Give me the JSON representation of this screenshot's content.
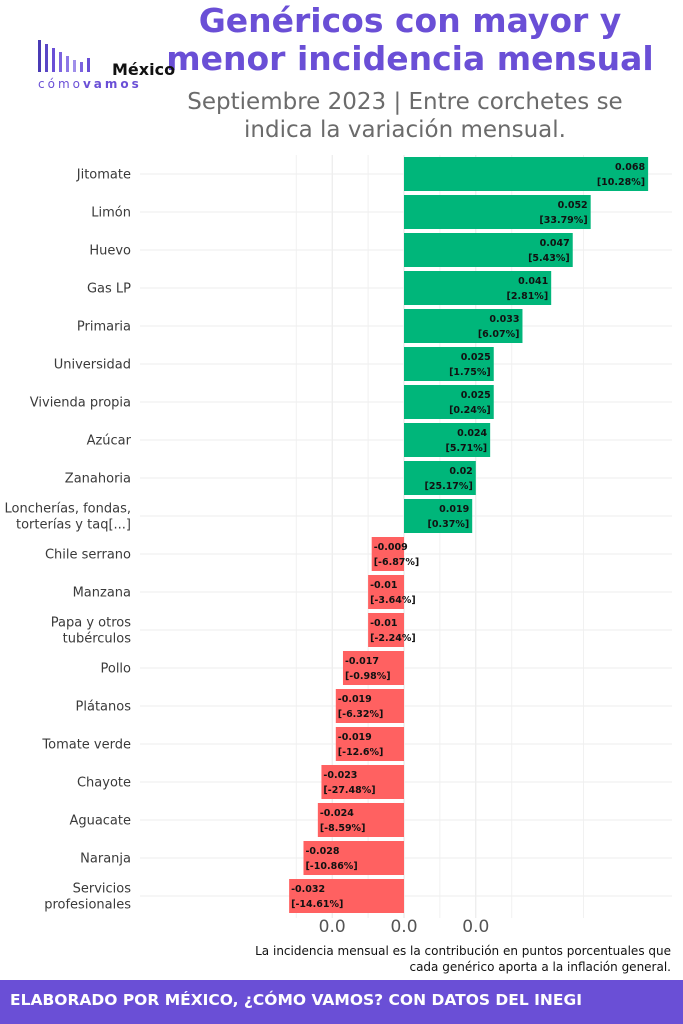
{
  "header": {
    "title_line1": "Genéricos con mayor y",
    "title_line2": "menor incidencia mensual",
    "subtitle_line1": "Septiembre 2023 | Entre corchetes se",
    "subtitle_line2": "indica la variación mensual."
  },
  "logo": {
    "word": "México",
    "sub_light": "cómo",
    "sub_bold": "vamos"
  },
  "footnote": {
    "line1": "La incidencia mensual es la contribución en puntos porcentuales que",
    "line2": "cada genérico aporta a la inflación general."
  },
  "footer": {
    "text": "ELABORADO POR MÉXICO, ¿CÓMO VAMOS? CON DATOS DEL INEGI"
  },
  "colors": {
    "positive": "#00b67a",
    "negative": "#ff6161",
    "title": "#6a4fd6",
    "grid": "#e6e6e6"
  },
  "chart_data": {
    "type": "bar",
    "orientation": "horizontal",
    "title": "Genéricos con mayor y menor incidencia mensual",
    "subtitle": "Septiembre 2023 | Entre corchetes se indica la variación mensual.",
    "xlabel": "",
    "ylabel": "",
    "xlim": [
      -0.04,
      0.075
    ],
    "x_tick_labels": [
      {
        "value": -0.02,
        "label": "0.0"
      },
      {
        "value": 0.0,
        "label": "0.0"
      },
      {
        "value": 0.02,
        "label": "0.0"
      }
    ],
    "grid": true,
    "categories": [
      [
        "Jitomate"
      ],
      [
        "Limón"
      ],
      [
        "Huevo"
      ],
      [
        "Gas LP"
      ],
      [
        "Primaria"
      ],
      [
        "Universidad"
      ],
      [
        "Vivienda propia"
      ],
      [
        "Azúcar"
      ],
      [
        "Zanahoria"
      ],
      [
        "Loncherías, fondas,",
        "torterías y taq[...]"
      ],
      [
        "Chile serrano"
      ],
      [
        "Manzana"
      ],
      [
        "Papa y otros",
        "tubérculos"
      ],
      [
        "Pollo"
      ],
      [
        "Plátanos"
      ],
      [
        "Tomate verde"
      ],
      [
        "Chayote"
      ],
      [
        "Aguacate"
      ],
      [
        "Naranja"
      ],
      [
        "Servicios",
        "profesionales"
      ]
    ],
    "values": [
      0.068,
      0.052,
      0.047,
      0.041,
      0.033,
      0.025,
      0.025,
      0.024,
      0.02,
      0.019,
      -0.009,
      -0.01,
      -0.01,
      -0.017,
      -0.019,
      -0.019,
      -0.023,
      -0.024,
      -0.028,
      -0.032
    ],
    "value_labels": [
      "0.068",
      "0.052",
      "0.047",
      "0.041",
      "0.033",
      "0.025",
      "0.025",
      "0.024",
      "0.02",
      "0.019",
      "-0.009",
      "-0.01",
      "-0.01",
      "-0.017",
      "-0.019",
      "-0.019",
      "-0.023",
      "-0.024",
      "-0.028",
      "-0.032"
    ],
    "monthly_variation_labels": [
      "[10.28%]",
      "[33.79%]",
      "[5.43%]",
      "[2.81%]",
      "[6.07%]",
      "[1.75%]",
      "[0.24%]",
      "[5.71%]",
      "[25.17%]",
      "[0.37%]",
      "[-6.87%]",
      "[-3.64%]",
      "[-2.24%]",
      "[-0.98%]",
      "[-6.32%]",
      "[-12.6%]",
      "[-27.48%]",
      "[-8.59%]",
      "[-10.86%]",
      "[-14.61%]"
    ]
  }
}
